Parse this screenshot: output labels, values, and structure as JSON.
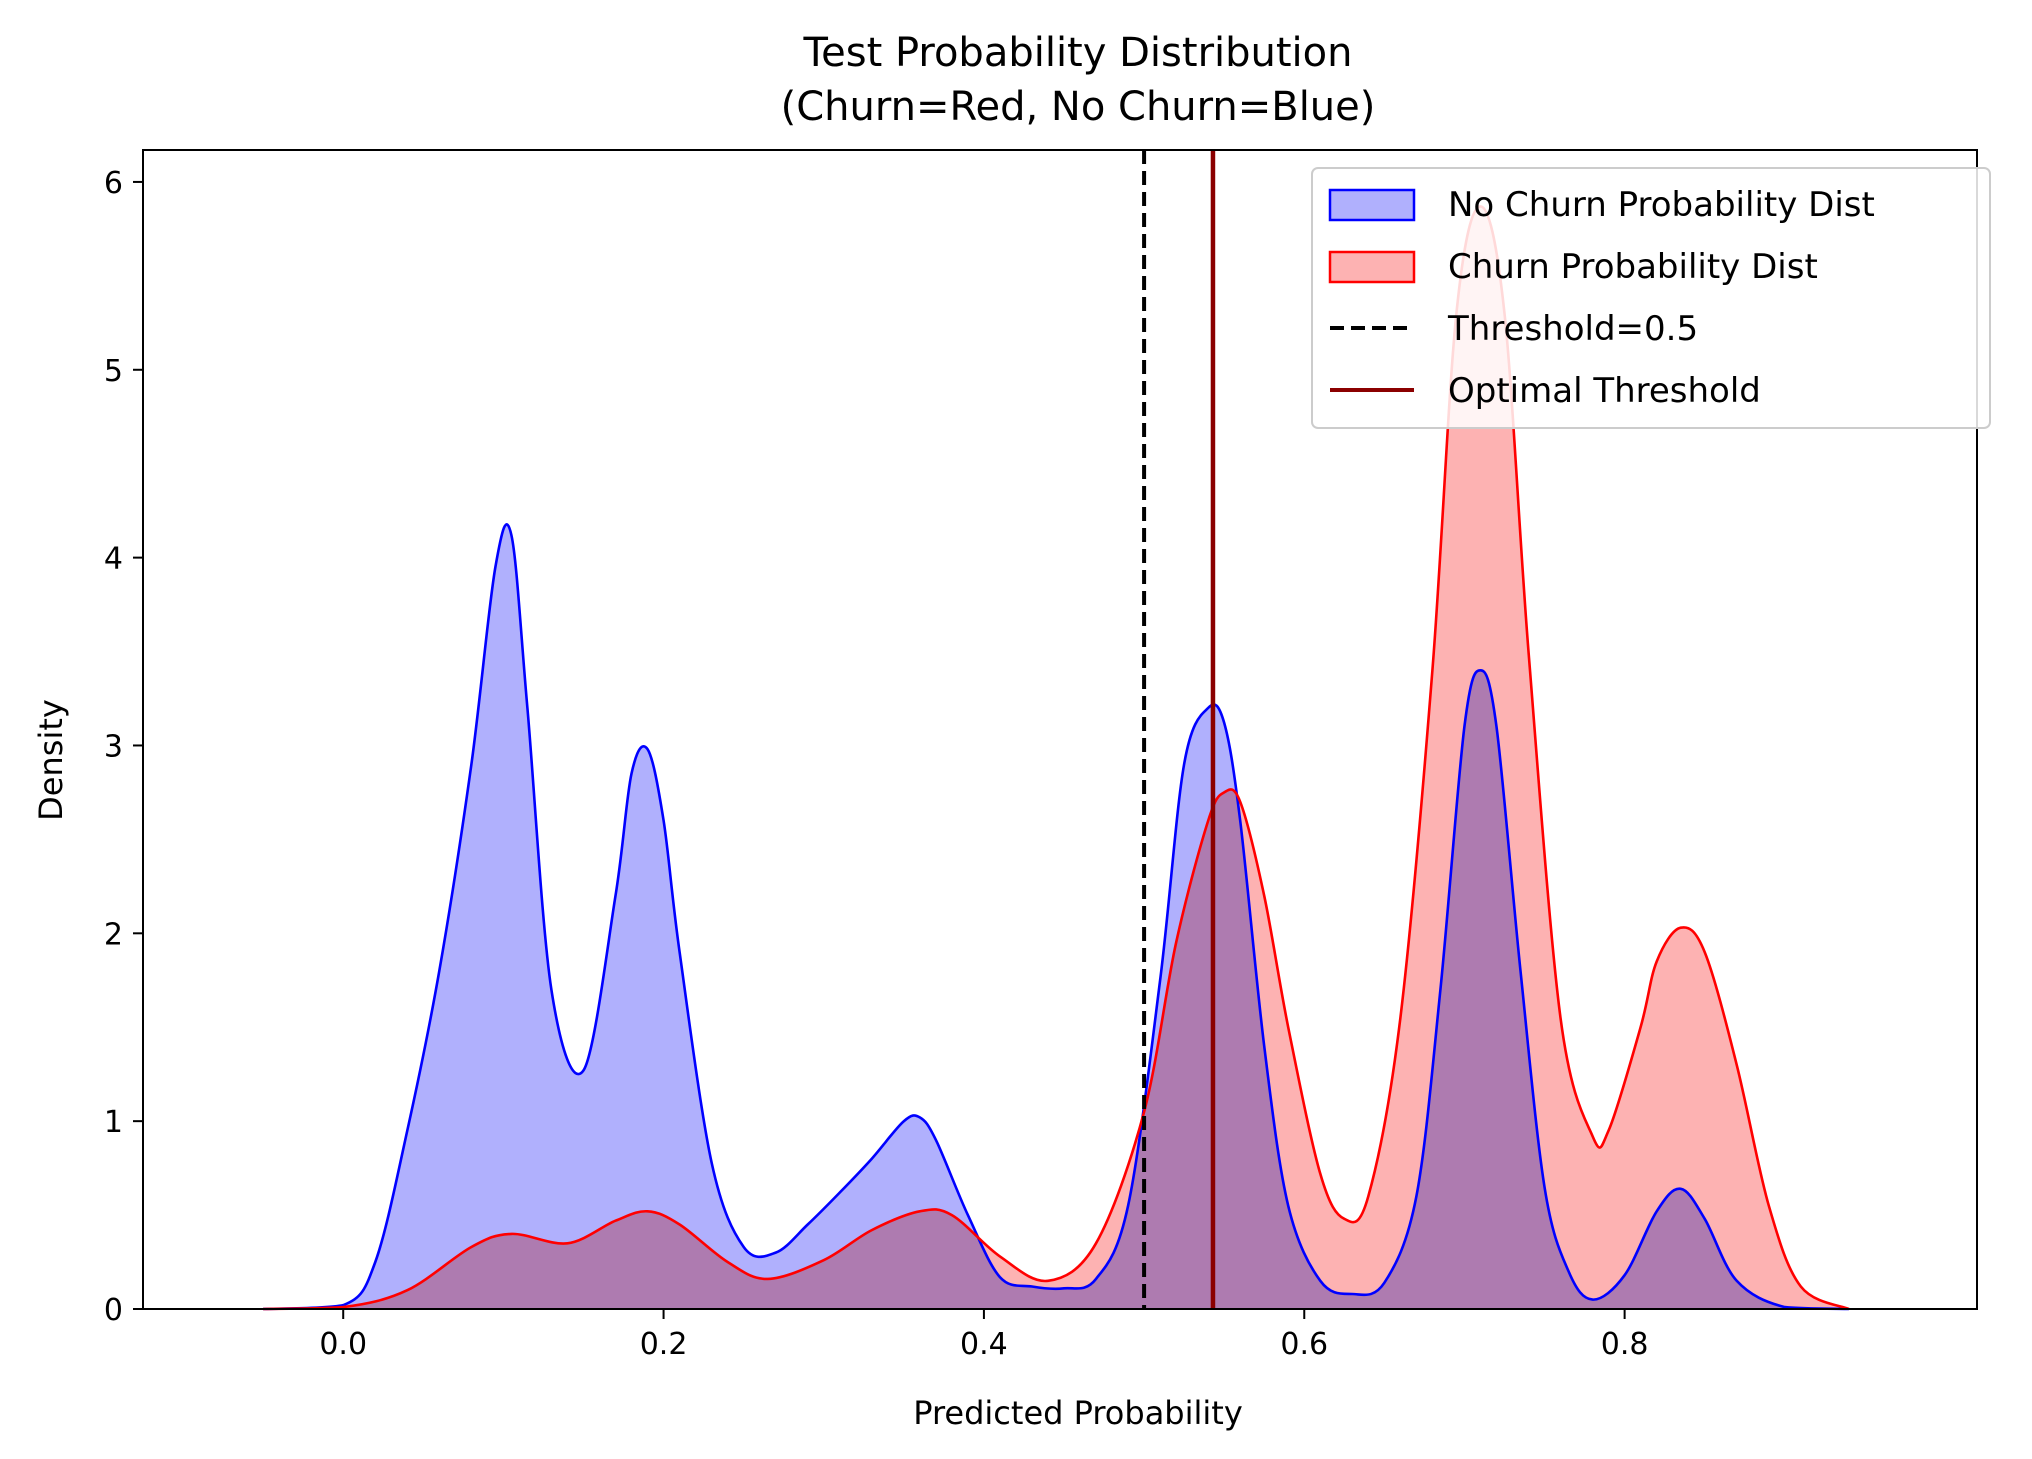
{
  "chart_data": {
    "type": "area",
    "title": "Test Probability Distribution",
    "subtitle": "(Churn=Red, No Churn=Blue)",
    "xlabel": "Predicted Probability",
    "ylabel": "Density",
    "xlim": [
      -0.125,
      1.02
    ],
    "ylim": [
      0,
      6.17
    ],
    "xticks": [
      0.0,
      0.2,
      0.4,
      0.6,
      0.8
    ],
    "xtick_labels": [
      "0.0",
      "0.2",
      "0.4",
      "0.6",
      "0.8"
    ],
    "yticks": [
      0,
      1,
      2,
      3,
      4,
      5,
      6
    ],
    "ytick_labels": [
      "0",
      "1",
      "2",
      "3",
      "4",
      "5",
      "6"
    ],
    "grid": false,
    "legend_position": "top-right",
    "series": [
      {
        "name": "No Churn Probability Dist",
        "color": "#0000ff",
        "fill": "#b0b0fd",
        "x": [
          -0.05,
          0.0,
          0.02,
          0.04,
          0.06,
          0.08,
          0.095,
          0.105,
          0.115,
          0.13,
          0.15,
          0.17,
          0.18,
          0.19,
          0.2,
          0.21,
          0.23,
          0.25,
          0.27,
          0.29,
          0.31,
          0.33,
          0.35,
          0.36,
          0.37,
          0.39,
          0.41,
          0.43,
          0.45,
          0.47,
          0.49,
          0.51,
          0.525,
          0.54,
          0.55,
          0.56,
          0.575,
          0.59,
          0.61,
          0.63,
          0.65,
          0.67,
          0.685,
          0.7,
          0.71,
          0.72,
          0.735,
          0.75,
          0.765,
          0.78,
          0.8,
          0.82,
          0.835,
          0.85,
          0.87,
          0.9,
          0.94
        ],
        "y": [
          0.0,
          0.02,
          0.25,
          0.95,
          1.8,
          2.9,
          3.95,
          4.12,
          3.2,
          1.7,
          1.27,
          2.2,
          2.85,
          2.98,
          2.6,
          1.9,
          0.78,
          0.33,
          0.3,
          0.45,
          0.62,
          0.8,
          1.0,
          1.02,
          0.9,
          0.5,
          0.17,
          0.12,
          0.11,
          0.16,
          0.55,
          1.75,
          2.9,
          3.2,
          3.12,
          2.6,
          1.4,
          0.55,
          0.15,
          0.08,
          0.14,
          0.6,
          1.7,
          3.1,
          3.4,
          3.1,
          1.8,
          0.65,
          0.2,
          0.05,
          0.18,
          0.52,
          0.64,
          0.48,
          0.15,
          0.01,
          0.0
        ]
      },
      {
        "name": "Churn Probability Dist",
        "color": "#ff0000",
        "fill": "#fdb2b2",
        "x": [
          -0.05,
          0.0,
          0.04,
          0.08,
          0.105,
          0.14,
          0.17,
          0.19,
          0.21,
          0.24,
          0.265,
          0.3,
          0.33,
          0.36,
          0.38,
          0.41,
          0.44,
          0.47,
          0.5,
          0.52,
          0.54,
          0.55,
          0.56,
          0.575,
          0.59,
          0.61,
          0.625,
          0.64,
          0.66,
          0.68,
          0.695,
          0.71,
          0.725,
          0.74,
          0.76,
          0.78,
          0.79,
          0.81,
          0.82,
          0.835,
          0.85,
          0.87,
          0.89,
          0.91,
          0.94
        ],
        "y": [
          0.0,
          0.01,
          0.1,
          0.33,
          0.4,
          0.35,
          0.47,
          0.52,
          0.45,
          0.25,
          0.16,
          0.26,
          0.42,
          0.52,
          0.5,
          0.28,
          0.15,
          0.35,
          1.05,
          1.95,
          2.6,
          2.75,
          2.7,
          2.2,
          1.5,
          0.72,
          0.48,
          0.6,
          1.55,
          3.4,
          5.3,
          5.87,
          5.3,
          3.5,
          1.55,
          0.92,
          0.95,
          1.5,
          1.85,
          2.03,
          1.9,
          1.3,
          0.55,
          0.12,
          0.0
        ]
      }
    ],
    "vlines": [
      {
        "name": "Threshold=0.5",
        "x": 0.5,
        "color": "#000000",
        "style": "dashed"
      },
      {
        "name": "Optimal Threshold",
        "x": 0.543,
        "color": "#8b0000",
        "style": "solid"
      }
    ],
    "legend": [
      {
        "label": "No Churn Probability Dist",
        "kind": "patch",
        "edge": "#0000ff",
        "fill": "#b0b0fd"
      },
      {
        "label": "Churn Probability Dist",
        "kind": "patch",
        "edge": "#ff0000",
        "fill": "#fdb2b2"
      },
      {
        "label": "Threshold=0.5",
        "kind": "line",
        "color": "#000000",
        "style": "dashed"
      },
      {
        "label": "Optimal Threshold",
        "kind": "line",
        "color": "#8b0000",
        "style": "solid"
      }
    ]
  }
}
